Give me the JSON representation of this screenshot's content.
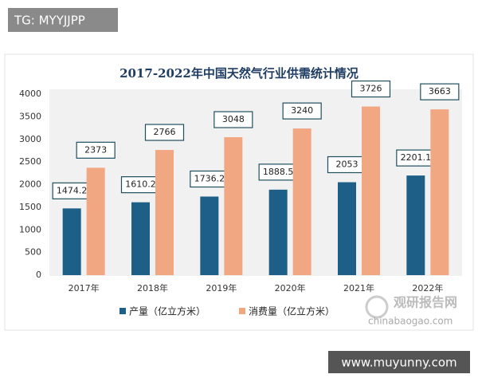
{
  "chart_data": {
    "type": "bar",
    "title": "2017-2022年中国天然气行业供需统计情况",
    "categories": [
      "2017年",
      "2018年",
      "2019年",
      "2020年",
      "2021年",
      "2022年"
    ],
    "series": [
      {
        "name": "产量（亿立方米）",
        "color": "#1d5f86",
        "values": [
          1474.2,
          1610.2,
          1736.2,
          1888.5,
          2053,
          2201.1
        ]
      },
      {
        "name": "消费量（亿立方米）",
        "color": "#f2a783",
        "values": [
          2373,
          2766,
          3048,
          3240,
          3726,
          3663
        ]
      }
    ],
    "ylim": [
      0,
      4000
    ],
    "yticks": [
      0,
      500,
      1000,
      1500,
      2000,
      2500,
      3000,
      3500,
      4000
    ],
    "grid": false,
    "legend": "bottom"
  },
  "watermark_top": "TG: MYYJJPP",
  "logo": {
    "name": "观研报告网",
    "url": "chinabaogao.com"
  },
  "watermark_bottom": "www.muyunny.com"
}
